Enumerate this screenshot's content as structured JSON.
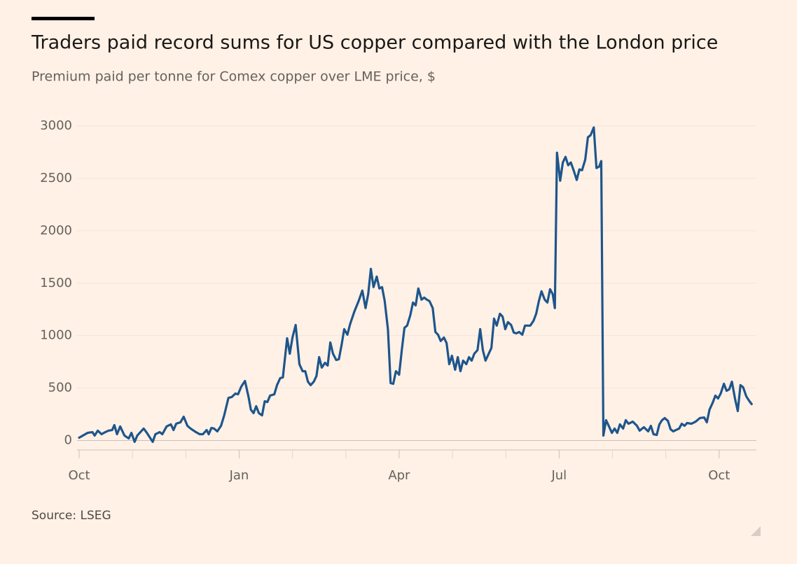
{
  "chart_data": {
    "type": "line",
    "title": "Traders paid record sums for US copper compared with the London price",
    "subtitle": "Premium paid per tonne for Comex copper over LME price, $",
    "source": "Source: LSEG",
    "color": "#1e558c",
    "grid": true,
    "ylim": [
      -90,
      3000
    ],
    "yticks": [
      0,
      500,
      1000,
      1500,
      2000,
      2500,
      3000
    ],
    "xlim": [
      0,
      12.62
    ],
    "xticks": [
      {
        "value": 0,
        "label": "Oct"
      },
      {
        "value": 3,
        "label": "Jan"
      },
      {
        "value": 6,
        "label": "Apr"
      },
      {
        "value": 9,
        "label": "Jul"
      },
      {
        "value": 12,
        "label": "Oct"
      }
    ],
    "xminorticks": [
      1,
      2,
      4,
      5,
      7,
      8,
      10,
      11
    ],
    "x": [
      0,
      0.16,
      0.25,
      0.29,
      0.35,
      0.42,
      0.49,
      0.55,
      0.62,
      0.66,
      0.71,
      0.77,
      0.85,
      0.93,
      0.98,
      1.04,
      1.09,
      1.21,
      1.27,
      1.38,
      1.43,
      1.51,
      1.56,
      1.64,
      1.72,
      1.77,
      1.82,
      1.9,
      1.96,
      2.03,
      2.09,
      2.19,
      2.26,
      2.32,
      2.39,
      2.43,
      2.48,
      2.53,
      2.59,
      2.66,
      2.72,
      2.8,
      2.86,
      2.93,
      2.98,
      3.04,
      3.11,
      3.18,
      3.22,
      3.27,
      3.32,
      3.37,
      3.43,
      3.48,
      3.53,
      3.58,
      3.66,
      3.71,
      3.77,
      3.82,
      3.9,
      3.95,
      4.0,
      4.06,
      4.13,
      4.19,
      4.24,
      4.29,
      4.34,
      4.4,
      4.45,
      4.5,
      4.55,
      4.61,
      4.66,
      4.71,
      4.76,
      4.82,
      4.87,
      4.92,
      4.97,
      5.03,
      5.08,
      5.16,
      5.24,
      5.31,
      5.37,
      5.42,
      5.47,
      5.52,
      5.58,
      5.63,
      5.68,
      5.73,
      5.79,
      5.84,
      5.89,
      5.94,
      6.0,
      6.05,
      6.1,
      6.15,
      6.21,
      6.26,
      6.31,
      6.36,
      6.42,
      6.47,
      6.52,
      6.57,
      6.63,
      6.68,
      6.73,
      6.78,
      6.84,
      6.89,
      6.94,
      6.99,
      7.05,
      7.1,
      7.15,
      7.2,
      7.26,
      7.31,
      7.36,
      7.41,
      7.47,
      7.52,
      7.57,
      7.62,
      7.68,
      7.73,
      7.78,
      7.83,
      7.89,
      7.94,
      7.99,
      8.04,
      8.1,
      8.15,
      8.2,
      8.25,
      8.31,
      8.36,
      8.41,
      8.46,
      8.52,
      8.57,
      8.62,
      8.67,
      8.73,
      8.78,
      8.83,
      8.88,
      8.92,
      8.96,
      9.02,
      9.07,
      9.12,
      9.17,
      9.22,
      9.28,
      9.33,
      9.38,
      9.43,
      9.49,
      9.54,
      9.59,
      9.65,
      9.7,
      9.75,
      9.79,
      9.83,
      9.88,
      9.93,
      9.99,
      10.04,
      10.09,
      10.14,
      10.2,
      10.25,
      10.3,
      10.38,
      10.46,
      10.51,
      10.59,
      10.67,
      10.72,
      10.77,
      10.83,
      10.88,
      10.93,
      10.98,
      11.04,
      11.09,
      11.14,
      11.19,
      11.25,
      11.3,
      11.35,
      11.4,
      11.48,
      11.56,
      11.64,
      11.72,
      11.77,
      11.82,
      11.88,
      11.93,
      11.98,
      12.03,
      12.09,
      12.14,
      12.19,
      12.24,
      12.3,
      12.35,
      12.4,
      12.45,
      12.51,
      12.56,
      12.61
    ],
    "values": [
      27,
      73,
      80,
      47,
      94,
      60,
      80,
      94,
      100,
      147,
      60,
      134,
      47,
      20,
      73,
      -13,
      47,
      114,
      73,
      -13,
      60,
      80,
      60,
      134,
      154,
      100,
      160,
      174,
      227,
      140,
      114,
      80,
      60,
      60,
      100,
      60,
      120,
      114,
      87,
      140,
      240,
      407,
      414,
      448,
      441,
      514,
      568,
      407,
      294,
      261,
      327,
      261,
      240,
      374,
      367,
      428,
      441,
      528,
      595,
      601,
      975,
      828,
      982,
      1102,
      728,
      661,
      661,
      561,
      528,
      561,
      615,
      795,
      695,
      741,
      715,
      935,
      828,
      768,
      775,
      908,
      1062,
      1009,
      1109,
      1229,
      1329,
      1430,
      1263,
      1396,
      1637,
      1463,
      1563,
      1450,
      1463,
      1329,
      1062,
      548,
      541,
      661,
      628,
      862,
      1075,
      1096,
      1196,
      1316,
      1289,
      1450,
      1343,
      1363,
      1343,
      1329,
      1263,
      1035,
      1009,
      949,
      982,
      929,
      728,
      808,
      675,
      795,
      661,
      762,
      728,
      795,
      762,
      828,
      862,
      1062,
      862,
      762,
      828,
      882,
      1162,
      1096,
      1209,
      1182,
      1062,
      1129,
      1102,
      1029,
      1022,
      1035,
      1009,
      1096,
      1096,
      1096,
      1142,
      1209,
      1329,
      1423,
      1343,
      1316,
      1443,
      1396,
      1263,
      2745,
      2478,
      2652,
      2705,
      2625,
      2652,
      2565,
      2485,
      2585,
      2578,
      2679,
      2892,
      2912,
      2986,
      2599,
      2612,
      2665,
      47,
      194,
      140,
      73,
      114,
      73,
      154,
      114,
      194,
      160,
      180,
      140,
      94,
      127,
      87,
      140,
      60,
      53,
      154,
      194,
      214,
      187,
      107,
      87,
      100,
      114,
      160,
      140,
      167,
      160,
      180,
      214,
      220,
      174,
      294,
      361,
      428,
      401,
      448,
      541,
      474,
      488,
      561,
      394,
      281,
      528,
      508,
      421,
      381,
      347
    ]
  }
}
